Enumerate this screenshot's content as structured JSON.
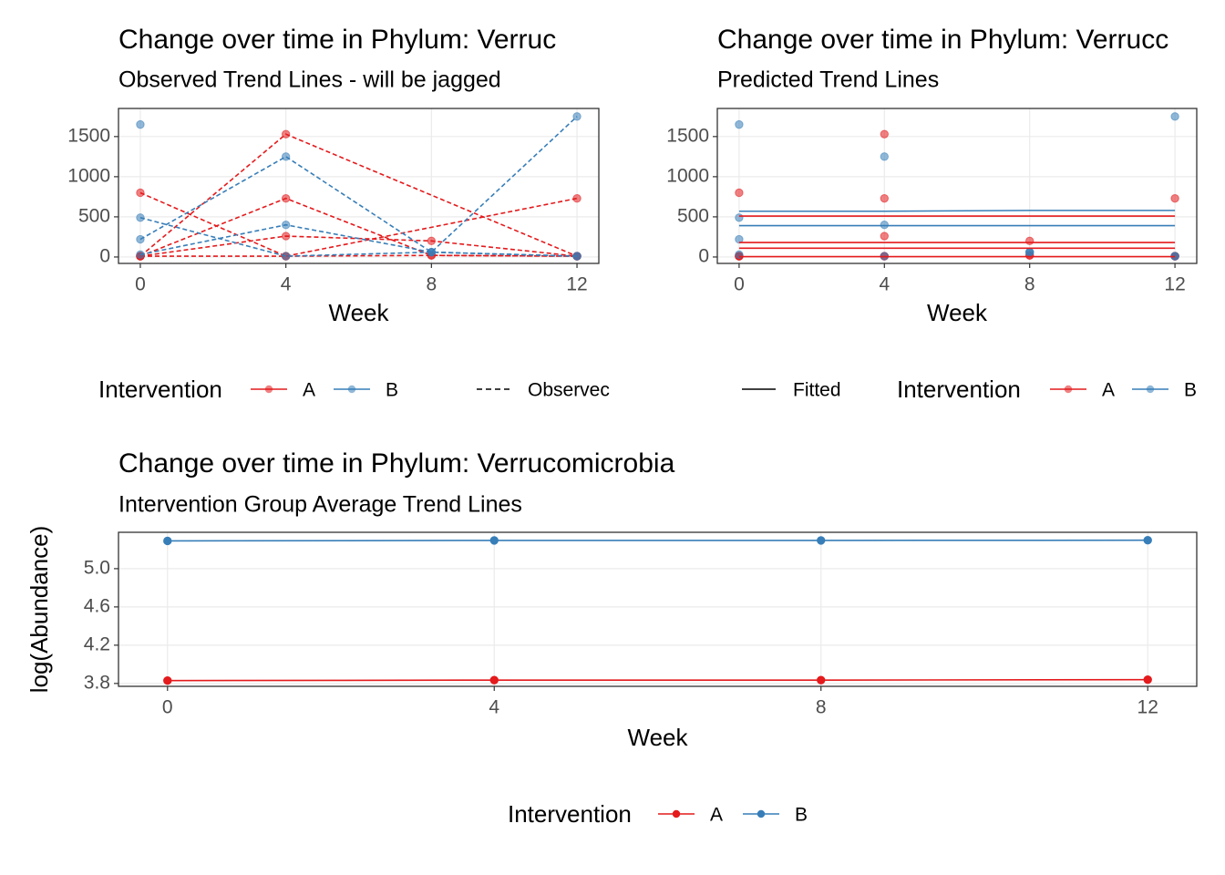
{
  "chart_data": [
    {
      "type": "line",
      "title": "Change over time in Phylum: Verruc",
      "subtitle": "Observed Trend Lines - will be jagged",
      "x_label": "Week",
      "xlim": [
        -0.6,
        12.6
      ],
      "xticks": [
        0,
        4,
        8,
        12
      ],
      "ylim": [
        -80,
        1850
      ],
      "yticks": [
        0,
        500,
        1000,
        1500
      ],
      "grid": true,
      "marker_opacity": 0.55,
      "legend": {
        "title": "Intervention",
        "items": [
          {
            "name": "A",
            "color": "#E41A1C"
          },
          {
            "name": "B",
            "color": "#377EB8"
          }
        ],
        "linetype": {
          "label": "Observec",
          "dash": true
        }
      },
      "series": [
        {
          "color": "#E41A1C",
          "dash": true,
          "markers": true,
          "x": [
            0,
            4,
            12
          ],
          "values": [
            10,
            1530,
            10
          ]
        },
        {
          "color": "#E41A1C",
          "dash": true,
          "markers": true,
          "x": [
            0,
            4,
            8,
            12
          ],
          "values": [
            800,
            10,
            20,
            10
          ]
        },
        {
          "color": "#E41A1C",
          "dash": true,
          "markers": true,
          "x": [
            0,
            4,
            8,
            12
          ],
          "values": [
            10,
            730,
            20,
            10
          ]
        },
        {
          "color": "#E41A1C",
          "dash": true,
          "markers": true,
          "x": [
            0,
            4,
            12
          ],
          "values": [
            10,
            10,
            730
          ]
        },
        {
          "color": "#E41A1C",
          "dash": true,
          "markers": true,
          "x": [
            0,
            4,
            8,
            12
          ],
          "values": [
            10,
            260,
            200,
            10
          ]
        },
        {
          "color": "#377EB8",
          "dash": true,
          "markers": true,
          "x": [
            0,
            4,
            8,
            12
          ],
          "values": [
            490,
            10,
            60,
            10
          ]
        },
        {
          "color": "#377EB8",
          "dash": true,
          "markers": true,
          "x": [
            0,
            4,
            8,
            12
          ],
          "values": [
            220,
            1250,
            60,
            1750
          ]
        },
        {
          "color": "#377EB8",
          "dash": true,
          "markers": true,
          "x": [
            0,
            4,
            8,
            12
          ],
          "values": [
            30,
            400,
            60,
            10
          ]
        },
        {
          "color": "#377EB8",
          "dash": true,
          "markers": true,
          "x": [
            0
          ],
          "values": [
            1650
          ]
        }
      ]
    },
    {
      "type": "line",
      "title": "Change over time in Phylum: Verrucc",
      "subtitle": "Predicted Trend Lines",
      "x_label": "Week",
      "xlim": [
        -0.6,
        12.6
      ],
      "xticks": [
        0,
        4,
        8,
        12
      ],
      "ylim": [
        -80,
        1850
      ],
      "yticks": [
        0,
        500,
        1000,
        1500
      ],
      "grid": true,
      "marker_opacity": 0.55,
      "legend": {
        "title": "Intervention",
        "items": [
          {
            "name": "A",
            "color": "#E41A1C"
          },
          {
            "name": "B",
            "color": "#377EB8"
          }
        ],
        "linetype": {
          "label": "Fitted",
          "dash": false
        }
      },
      "series": [
        {
          "color": "#E41A1C",
          "line": false,
          "markers": true,
          "x": [
            0,
            4,
            12
          ],
          "values": [
            10,
            1530,
            10
          ]
        },
        {
          "color": "#E41A1C",
          "line": false,
          "markers": true,
          "x": [
            0,
            4,
            8,
            12
          ],
          "values": [
            800,
            10,
            20,
            10
          ]
        },
        {
          "color": "#E41A1C",
          "line": false,
          "markers": true,
          "x": [
            0,
            4,
            8,
            12
          ],
          "values": [
            10,
            730,
            20,
            10
          ]
        },
        {
          "color": "#E41A1C",
          "line": false,
          "markers": true,
          "x": [
            0,
            4,
            12
          ],
          "values": [
            10,
            10,
            730
          ]
        },
        {
          "color": "#E41A1C",
          "line": false,
          "markers": true,
          "x": [
            0,
            4,
            8,
            12
          ],
          "values": [
            10,
            260,
            200,
            10
          ]
        },
        {
          "color": "#377EB8",
          "line": false,
          "markers": true,
          "x": [
            0,
            4,
            8,
            12
          ],
          "values": [
            490,
            10,
            60,
            10
          ]
        },
        {
          "color": "#377EB8",
          "line": false,
          "markers": true,
          "x": [
            0,
            4,
            8,
            12
          ],
          "values": [
            220,
            1250,
            60,
            1750
          ]
        },
        {
          "color": "#377EB8",
          "line": false,
          "markers": true,
          "x": [
            0,
            4,
            8,
            12
          ],
          "values": [
            30,
            400,
            60,
            10
          ]
        },
        {
          "color": "#377EB8",
          "line": false,
          "markers": true,
          "x": [
            0
          ],
          "values": [
            1650
          ]
        },
        {
          "color": "#E41A1C",
          "x": [
            0,
            4,
            8,
            12
          ],
          "values": [
            510,
            510,
            510,
            510
          ]
        },
        {
          "color": "#E41A1C",
          "x": [
            0,
            4,
            8,
            12
          ],
          "values": [
            180,
            180,
            180,
            180
          ]
        },
        {
          "color": "#E41A1C",
          "x": [
            0,
            4,
            8,
            12
          ],
          "values": [
            110,
            110,
            110,
            110
          ]
        },
        {
          "color": "#E41A1C",
          "x": [
            0,
            4,
            8,
            12
          ],
          "values": [
            5,
            5,
            5,
            5
          ]
        },
        {
          "color": "#377EB8",
          "x": [
            0,
            4,
            8,
            12
          ],
          "values": [
            570,
            570,
            580,
            580
          ]
        },
        {
          "color": "#377EB8",
          "x": [
            0,
            4,
            8,
            12
          ],
          "values": [
            390,
            390,
            390,
            390
          ]
        }
      ]
    },
    {
      "type": "line",
      "title": "Change over time in Phylum: Verrucomicrobia",
      "subtitle": "Intervention Group Average Trend Lines",
      "x_label": "Week",
      "y_label": "log(Abundance)",
      "xlim": [
        -0.6,
        12.6
      ],
      "xticks": [
        0,
        4,
        8,
        12
      ],
      "ylim": [
        3.77,
        5.38
      ],
      "yticks": [
        3.8,
        4.2,
        4.6,
        {
          "value": 5,
          "label": "5.0"
        }
      ],
      "grid": true,
      "marker_opacity": 1,
      "legend": {
        "title": "Intervention",
        "items": [
          {
            "name": "A",
            "color": "#E41A1C"
          },
          {
            "name": "B",
            "color": "#377EB8"
          }
        ]
      },
      "series": [
        {
          "color": "#E41A1C",
          "markers": true,
          "x": [
            0,
            4,
            8,
            12
          ],
          "values": [
            3.83,
            3.835,
            3.835,
            3.84
          ]
        },
        {
          "color": "#377EB8",
          "markers": true,
          "x": [
            0,
            4,
            8,
            12
          ],
          "values": [
            5.29,
            5.295,
            5.295,
            5.297
          ]
        }
      ]
    }
  ]
}
